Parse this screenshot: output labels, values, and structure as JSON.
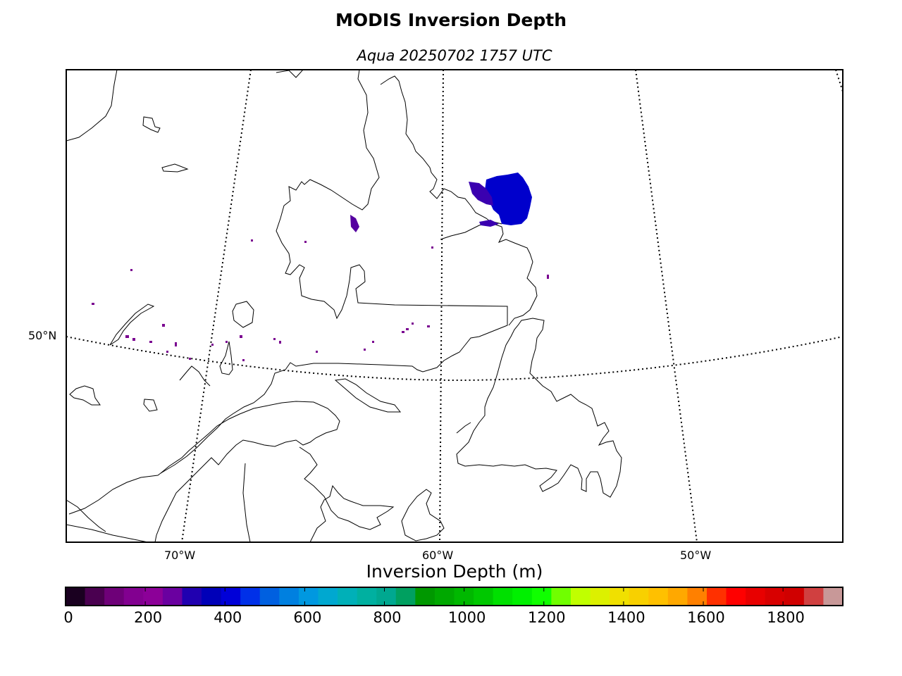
{
  "header": {
    "title": "MODIS Inversion Depth",
    "subtitle": "Aqua 20250702 1757 UTC"
  },
  "map": {
    "latitude_labels": [
      {
        "label": "50°N",
        "lat": 50
      }
    ],
    "longitude_labels": [
      {
        "label": "70°W",
        "lon": -70
      },
      {
        "label": "60°W",
        "lon": -60
      },
      {
        "label": "50°W",
        "lon": -50
      }
    ],
    "graticule_style": "dotted",
    "coastline_color": "#000000",
    "inversion_cluster_colors": [
      "#0000cc",
      "#3a00b0",
      "#7a0090",
      "#5500a0"
    ]
  },
  "colorbar": {
    "title": "Inversion Depth (m)",
    "min": 0,
    "max": 1950,
    "step": 50,
    "tick_labels": [
      "0",
      "200",
      "400",
      "600",
      "800",
      "1000",
      "1200",
      "1400",
      "1600",
      "1800"
    ],
    "tick_values": [
      0,
      200,
      400,
      600,
      800,
      1000,
      1200,
      1400,
      1600,
      1800
    ],
    "colors": [
      "#1a0020",
      "#4a0050",
      "#6e0078",
      "#820090",
      "#8c0098",
      "#6a00a0",
      "#2000b0",
      "#0000b8",
      "#0000d8",
      "#0030e8",
      "#0060e0",
      "#0080e0",
      "#0098e0",
      "#00a8d0",
      "#00b0b8",
      "#00b0a0",
      "#00a890",
      "#00a060",
      "#009800",
      "#00a800",
      "#00b800",
      "#00c800",
      "#00e000",
      "#00f000",
      "#10ff00",
      "#70ff00",
      "#c0ff00",
      "#dcf000",
      "#f0e000",
      "#f8d000",
      "#ffc000",
      "#ffa800",
      "#ff8000",
      "#ff3000",
      "#ff0000",
      "#e80000",
      "#d80000",
      "#d00000",
      "#d04040",
      "#c89898"
    ]
  }
}
